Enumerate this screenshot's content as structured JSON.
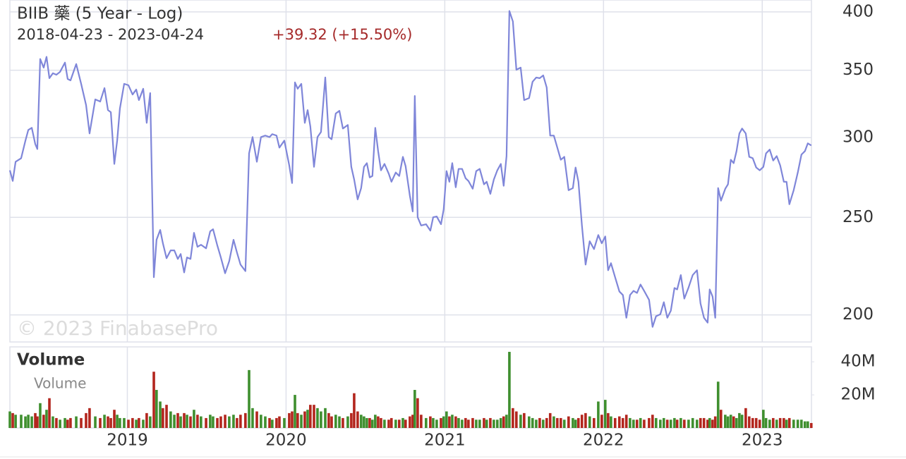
{
  "chart_data": [
    {
      "type": "line",
      "title": "BIIB 藥 (5 Year - Log)",
      "subtitle": "2018-04-23 - 2023-04-24",
      "annotation": "+39.32 (+15.50%)",
      "watermark": "© 2023 FinabasePro",
      "color": "#7f86d9",
      "annotation_color": "#a52a2a",
      "log_scale": true,
      "grid": true,
      "xlim": [
        2018.26,
        2023.31
      ],
      "ylim": [
        188,
        411
      ],
      "yticks": [
        200,
        250,
        300,
        350,
        400
      ],
      "x": [
        2018.26,
        2018.278,
        2018.296,
        2018.331,
        2018.358,
        2018.376,
        2018.398,
        2018.42,
        2018.433,
        2018.451,
        2018.473,
        2018.491,
        2018.509,
        2018.531,
        2018.553,
        2018.576,
        2018.607,
        2018.624,
        2018.642,
        2018.678,
        2018.709,
        2018.74,
        2018.762,
        2018.798,
        2018.829,
        2018.856,
        2018.878,
        2018.896,
        2018.918,
        2018.936,
        2018.953,
        2018.98,
        2019.007,
        2019.033,
        2019.056,
        2019.073,
        2019.1,
        2019.122,
        2019.144,
        2019.167,
        2019.184,
        2019.207,
        2019.224,
        2019.247,
        2019.273,
        2019.296,
        2019.318,
        2019.336,
        2019.358,
        2019.376,
        2019.398,
        2019.42,
        2019.442,
        2019.464,
        2019.496,
        2019.522,
        2019.54,
        2019.567,
        2019.589,
        2019.616,
        2019.642,
        2019.669,
        2019.691,
        2019.713,
        2019.744,
        2019.767,
        2019.789,
        2019.816,
        2019.842,
        2019.869,
        2019.896,
        2019.913,
        2019.94,
        2019.958,
        2019.989,
        2020.02,
        2020.038,
        2020.056,
        2020.073,
        2020.096,
        2020.118,
        2020.136,
        2020.153,
        2020.176,
        2020.198,
        2020.22,
        2020.247,
        2020.269,
        2020.287,
        2020.313,
        2020.336,
        2020.358,
        2020.389,
        2020.411,
        2020.429,
        2020.451,
        2020.473,
        2020.491,
        2020.509,
        2020.527,
        2020.544,
        2020.562,
        2020.58,
        2020.598,
        2020.62,
        2020.647,
        2020.664,
        2020.691,
        2020.713,
        2020.736,
        2020.753,
        2020.78,
        2020.798,
        2020.811,
        2020.829,
        2020.851,
        2020.882,
        2020.909,
        2020.927,
        2020.949,
        2020.976,
        2020.993,
        2021.011,
        2021.029,
        2021.047,
        2021.069,
        2021.087,
        2021.109,
        2021.131,
        2021.149,
        2021.176,
        2021.198,
        2021.22,
        2021.247,
        2021.264,
        2021.287,
        2021.309,
        2021.331,
        2021.353,
        2021.371,
        2021.389,
        2021.407,
        2021.429,
        2021.451,
        2021.478,
        2021.5,
        2021.531,
        2021.553,
        2021.576,
        2021.598,
        2021.62,
        2021.642,
        2021.664,
        2021.687,
        2021.709,
        2021.731,
        2021.753,
        2021.78,
        2021.807,
        2021.824,
        2021.842,
        2021.864,
        2021.887,
        2021.913,
        2021.94,
        2021.967,
        2021.989,
        2022.011,
        2022.029,
        2022.047,
        2022.073,
        2022.1,
        2022.122,
        2022.144,
        2022.167,
        2022.189,
        2022.211,
        2022.233,
        2022.256,
        2022.287,
        2022.309,
        2022.331,
        2022.358,
        2022.38,
        2022.402,
        2022.424,
        2022.447,
        2022.464,
        2022.487,
        2022.509,
        2022.536,
        2022.562,
        2022.589,
        2022.611,
        2022.633,
        2022.656,
        2022.669,
        2022.687,
        2022.704,
        2022.722,
        2022.74,
        2022.767,
        2022.784,
        2022.802,
        2022.82,
        2022.838,
        2022.856,
        2022.873,
        2022.896,
        2022.918,
        2022.94,
        2022.962,
        2022.984,
        2023.007,
        2023.024,
        2023.047,
        2023.069,
        2023.091,
        2023.113,
        2023.136,
        2023.153,
        2023.171,
        2023.198,
        2023.224,
        2023.247,
        2023.269,
        2023.287,
        2023.309
      ],
      "values": [
        278.4,
        271.7,
        283.9,
        286.2,
        298.0,
        305.3,
        306.8,
        295.6,
        292.3,
        359.1,
        352.1,
        360.9,
        343.7,
        347.6,
        346.4,
        348.7,
        356.2,
        343.1,
        342.0,
        355.0,
        339.3,
        323.2,
        302.9,
        327.4,
        325.8,
        336.0,
        319.5,
        318.0,
        282.5,
        298.0,
        320.5,
        339.3,
        338.2,
        331.1,
        334.9,
        326.9,
        335.5,
        310.3,
        332.2,
        218.0,
        237.5,
        242.9,
        235.6,
        227.7,
        231.8,
        231.8,
        227.3,
        229.9,
        220.4,
        228.1,
        227.3,
        241.3,
        233.7,
        234.8,
        232.9,
        242.1,
        243.3,
        234.4,
        228.1,
        220.0,
        226.2,
        237.5,
        230.6,
        224.4,
        221.1,
        289.4,
        300.4,
        283.9,
        300.4,
        301.4,
        300.4,
        302.4,
        301.4,
        293.2,
        298.0,
        281.6,
        270.4,
        340.4,
        335.5,
        339.3,
        310.3,
        319.5,
        307.8,
        280.6,
        300.4,
        303.9,
        344.3,
        300.4,
        298.9,
        317.0,
        319.0,
        306.3,
        308.8,
        280.6,
        272.6,
        260.5,
        267.3,
        280.6,
        283.0,
        273.9,
        274.8,
        306.8,
        290.9,
        278.4,
        282.5,
        276.2,
        271.2,
        277.0,
        274.8,
        287.1,
        281.1,
        262.6,
        253.4,
        330.0,
        250.1,
        245.4,
        246.1,
        242.5,
        250.1,
        250.5,
        246.1,
        254.6,
        277.9,
        271.2,
        283.0,
        267.8,
        279.3,
        279.3,
        273.4,
        271.7,
        266.9,
        277.9,
        279.3,
        269.6,
        271.2,
        263.8,
        272.6,
        278.4,
        282.5,
        268.7,
        287.6,
        400.8,
        391.3,
        350.4,
        352.1,
        326.9,
        328.4,
        340.9,
        344.2,
        343.7,
        345.9,
        336.5,
        301.4,
        301.4,
        293.2,
        285.2,
        287.1,
        266.0,
        267.3,
        280.2,
        271.2,
        245.4,
        224.4,
        236.7,
        232.5,
        240.1,
        235.6,
        239.3,
        221.5,
        225.1,
        218.0,
        211.0,
        209.3,
        198.7,
        209.3,
        211.3,
        210.3,
        214.4,
        211.3,
        207.0,
        194.6,
        199.4,
        200.3,
        205.9,
        198.7,
        201.9,
        212.7,
        212.0,
        219.1,
        207.6,
        213.0,
        219.1,
        221.5,
        205.3,
        198.7,
        196.5,
        212.0,
        208.6,
        198.7,
        267.3,
        259.7,
        266.9,
        269.6,
        285.2,
        283.0,
        290.9,
        302.9,
        306.3,
        302.9,
        287.1,
        286.2,
        280.2,
        278.4,
        280.6,
        289.4,
        291.9,
        284.7,
        287.6,
        281.6,
        271.2,
        271.2,
        257.6,
        266.0,
        277.0,
        288.6,
        290.9,
        296.1,
        294.7
      ]
    },
    {
      "type": "bar",
      "title": "Volume",
      "up_color": "#3f8f2f",
      "down_color": "#b3261e",
      "grid": true,
      "xlim": [
        2018.26,
        2023.31
      ],
      "xticks": [
        2019,
        2020,
        2021,
        2022,
        2023
      ],
      "ylim": [
        0,
        49000000
      ],
      "yticks": [
        {
          "value": 20000000,
          "label": "20M"
        },
        {
          "value": 40000000,
          "label": "40M"
        }
      ],
      "series": [
        {
          "name": "Volume",
          "values": [
            10000000,
            9000000,
            8000000,
            8000000,
            7000000,
            8000000,
            7000000,
            9000000,
            7000000,
            15000000,
            8000000,
            11000000,
            18000000,
            7000000,
            6000000,
            5000000,
            6000000,
            5000000,
            6000000,
            7000000,
            6000000,
            9000000,
            12000000,
            7000000,
            6000000,
            8000000,
            7000000,
            6000000,
            11000000,
            8000000,
            6000000,
            6000000,
            5000000,
            6000000,
            5000000,
            6000000,
            5000000,
            9000000,
            7000000,
            34000000,
            23000000,
            16000000,
            12000000,
            14000000,
            10000000,
            8000000,
            9000000,
            7000000,
            9000000,
            8000000,
            7000000,
            11000000,
            8000000,
            7000000,
            6000000,
            8000000,
            7000000,
            6000000,
            7000000,
            8000000,
            7000000,
            8000000,
            6000000,
            8000000,
            9000000,
            35000000,
            12000000,
            10000000,
            8000000,
            7000000,
            6000000,
            5000000,
            6000000,
            7000000,
            6000000,
            9000000,
            10000000,
            20000000,
            9000000,
            8000000,
            10000000,
            11000000,
            14000000,
            14000000,
            12000000,
            10000000,
            12000000,
            9000000,
            7000000,
            8000000,
            7000000,
            6000000,
            7000000,
            9000000,
            21000000,
            10000000,
            8000000,
            7000000,
            6000000,
            6000000,
            5000000,
            8000000,
            7000000,
            6000000,
            5000000,
            5000000,
            6000000,
            5000000,
            5000000,
            6000000,
            5000000,
            7000000,
            8000000,
            23000000,
            18000000,
            8000000,
            6000000,
            7000000,
            6000000,
            5000000,
            6000000,
            7000000,
            10000000,
            7000000,
            8000000,
            7000000,
            6000000,
            5000000,
            6000000,
            5000000,
            6000000,
            5000000,
            5000000,
            6000000,
            5000000,
            6000000,
            5000000,
            5000000,
            6000000,
            7000000,
            8000000,
            46000000,
            12000000,
            10000000,
            8000000,
            9000000,
            7000000,
            6000000,
            5000000,
            6000000,
            5000000,
            6000000,
            9000000,
            7000000,
            6000000,
            6000000,
            5000000,
            7000000,
            6000000,
            5000000,
            6000000,
            8000000,
            9000000,
            7000000,
            6000000,
            16000000,
            8000000,
            17000000,
            9000000,
            7000000,
            6000000,
            7000000,
            6000000,
            8000000,
            6000000,
            5000000,
            5000000,
            6000000,
            5000000,
            6000000,
            8000000,
            6000000,
            5000000,
            6000000,
            5000000,
            5000000,
            6000000,
            5000000,
            6000000,
            5000000,
            5000000,
            6000000,
            5000000,
            6000000,
            6000000,
            5000000,
            6000000,
            5000000,
            7000000,
            28000000,
            11000000,
            8000000,
            7000000,
            8000000,
            7000000,
            6000000,
            9000000,
            8000000,
            12000000,
            7000000,
            6000000,
            6000000,
            5000000,
            11000000,
            6000000,
            5000000,
            6000000,
            5000000,
            6000000,
            6000000,
            5000000,
            6000000,
            5000000,
            5000000,
            5000000,
            4000000,
            4000000,
            3000000
          ]
        }
      ]
    }
  ]
}
